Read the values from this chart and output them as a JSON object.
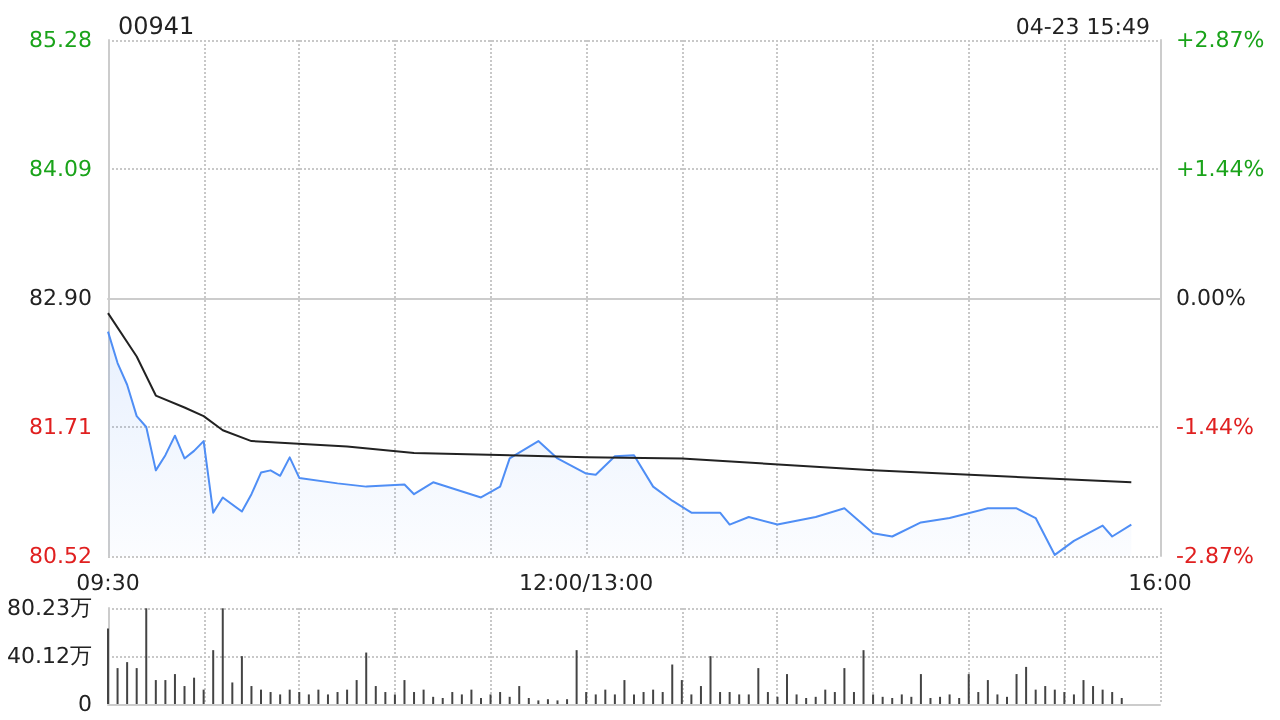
{
  "chart_data": [
    {
      "type": "line",
      "title": "00941",
      "annotations": [
        "04-23 15:49"
      ],
      "marker": "none",
      "grid": true,
      "categories": [
        "09:30",
        null,
        null,
        null,
        null,
        null,
        null,
        null,
        null,
        null,
        null,
        null,
        null,
        null,
        null,
        null,
        null,
        null,
        null,
        null,
        null,
        null,
        null,
        null,
        null,
        null,
        null,
        null,
        null,
        null,
        null,
        null,
        null,
        null,
        null,
        null,
        null,
        null,
        null,
        null,
        null,
        null,
        null,
        null,
        null,
        null,
        null,
        null,
        null,
        null,
        "12:00/13:00",
        null,
        null,
        null,
        null,
        null,
        null,
        null,
        null,
        null,
        null,
        null,
        null,
        null,
        null,
        null,
        null,
        null,
        null,
        null,
        null,
        null,
        null,
        null,
        null,
        null,
        null,
        null,
        null,
        null,
        null,
        null,
        null,
        null,
        null,
        null,
        null,
        null,
        null,
        null,
        null,
        null,
        null,
        null,
        null,
        null,
        null,
        null,
        null,
        null,
        null,
        null,
        null,
        null,
        null,
        null,
        null,
        null,
        null,
        null,
        "16:00"
      ],
      "ylim": [
        80.52,
        85.28
      ],
      "yticks": [
        80.52,
        81.71,
        {
          "value": 82.9,
          "label": "82.90"
        },
        84.09,
        85.28
      ],
      "y2lim": [
        -2.87,
        2.87
      ],
      "y2ticks": [
        {
          "value": -2.87,
          "label": "-2.87%"
        },
        {
          "value": -1.44,
          "label": "-1.44%"
        },
        {
          "value": 0,
          "label": "0.00%"
        },
        {
          "value": 1.44,
          "label": "+1.44%"
        },
        {
          "value": 2.87,
          "label": "+2.87%"
        }
      ],
      "series": [
        {
          "type": "area",
          "color": "#4f8ef5",
          "values": [
            82.59,
            82.3,
            82.1,
            81.81,
            81.71,
            81.31,
            81.45,
            81.63,
            81.42,
            81.49,
            81.58,
            80.92,
            81.06,
            null,
            80.93,
            81.09,
            81.29,
            81.31,
            81.26,
            81.43,
            81.24,
            null,
            null,
            null,
            81.19,
            null,
            null,
            81.16,
            null,
            null,
            null,
            81.18,
            81.09,
            null,
            81.2,
            null,
            null,
            null,
            null,
            81.06,
            null,
            81.16,
            81.42,
            null,
            null,
            81.58,
            null,
            81.42,
            null,
            null,
            81.28,
            81.27,
            null,
            81.44,
            null,
            81.45,
            null,
            81.16,
            null,
            81.03,
            null,
            80.92,
            null,
            null,
            80.92,
            80.81,
            null,
            80.88,
            null,
            null,
            80.81,
            null,
            null,
            null,
            80.88,
            null,
            null,
            80.96,
            null,
            null,
            80.73,
            null,
            80.7,
            null,
            null,
            80.83,
            null,
            null,
            80.87,
            null,
            null,
            null,
            80.96,
            null,
            null,
            80.96,
            null,
            80.87,
            null,
            80.53,
            null,
            80.66,
            null,
            null,
            80.8,
            80.7,
            null,
            80.81,
            null,
            null,
            null
          ]
        },
        {
          "type": "line",
          "color": "#222222",
          "values": [
            82.76,
            null,
            null,
            82.36,
            null,
            82.0,
            null,
            null,
            81.89,
            null,
            81.81,
            null,
            81.68,
            null,
            null,
            81.58,
            null,
            null,
            null,
            null,
            null,
            null,
            null,
            null,
            null,
            81.53,
            null,
            null,
            null,
            null,
            null,
            null,
            81.47,
            null,
            null,
            null,
            null,
            null,
            null,
            null,
            null,
            null,
            null,
            null,
            null,
            null,
            81.44,
            null,
            null,
            null,
            81.43,
            null,
            null,
            null,
            null,
            null,
            null,
            null,
            null,
            null,
            81.42,
            null,
            null,
            null,
            null,
            null,
            null,
            null,
            null,
            null,
            null,
            null,
            null,
            null,
            null,
            null,
            null,
            null,
            null,
            null,
            81.31,
            null,
            null,
            null,
            null,
            null,
            null,
            null,
            null,
            null,
            null,
            null,
            null,
            null,
            null,
            null,
            null,
            null,
            null,
            null,
            null,
            null,
            null,
            null,
            null,
            null,
            null,
            81.2,
            null,
            null,
            null
          ]
        }
      ]
    },
    {
      "type": "bar",
      "color": "#444444",
      "grid": true,
      "categories": [
        null,
        null,
        null,
        null,
        null,
        null,
        null,
        null,
        null,
        null,
        null,
        null,
        null,
        null,
        null,
        null,
        null,
        null,
        null,
        null,
        null,
        null,
        null,
        null,
        null,
        null,
        null,
        null,
        null,
        null,
        null,
        null,
        null,
        null,
        null,
        null,
        null,
        null,
        null,
        null,
        null,
        null,
        null,
        null,
        null,
        null,
        null,
        null,
        null,
        null,
        null,
        null,
        null,
        null,
        null,
        null,
        null,
        null,
        null,
        null,
        null,
        null,
        null,
        null,
        null,
        null,
        null,
        null,
        null,
        null,
        null,
        null,
        null,
        null,
        null,
        null,
        null,
        null,
        null,
        null,
        null,
        null,
        null,
        null,
        null,
        null,
        null,
        null,
        null,
        null,
        null,
        null,
        null,
        null,
        null,
        null,
        null,
        null,
        null,
        null,
        null,
        null,
        null,
        null,
        null,
        null,
        null,
        null,
        null,
        null,
        null
      ],
      "ylim": [
        0,
        80.23
      ],
      "yticks": [
        0,
        {
          "value": 40.12,
          "label": "40.12万"
        },
        {
          "value": 80.23,
          "label": "80.23万"
        }
      ],
      "values": [
        63,
        30,
        35,
        30,
        80,
        20,
        20,
        25,
        15,
        22,
        12,
        45,
        80,
        18,
        40,
        15,
        12,
        10,
        8,
        12,
        10,
        8,
        12,
        8,
        10,
        12,
        20,
        43,
        15,
        10,
        8,
        20,
        10,
        12,
        6,
        5,
        10,
        8,
        12,
        5,
        8,
        10,
        6,
        15,
        5,
        3,
        4,
        3,
        4,
        45,
        10,
        8,
        12,
        8,
        20,
        8,
        10,
        12,
        10,
        33,
        20,
        8,
        15,
        40,
        10,
        10,
        8,
        8,
        30,
        10,
        6,
        25,
        8,
        5,
        6,
        12,
        10,
        30,
        10,
        45,
        8,
        6,
        5,
        8,
        6,
        25,
        5,
        6,
        8,
        5,
        25,
        10,
        20,
        8,
        6,
        25,
        31,
        12,
        15,
        12,
        10,
        8,
        20,
        15,
        12,
        10,
        5,
        null,
        null,
        null,
        null
      ]
    }
  ]
}
